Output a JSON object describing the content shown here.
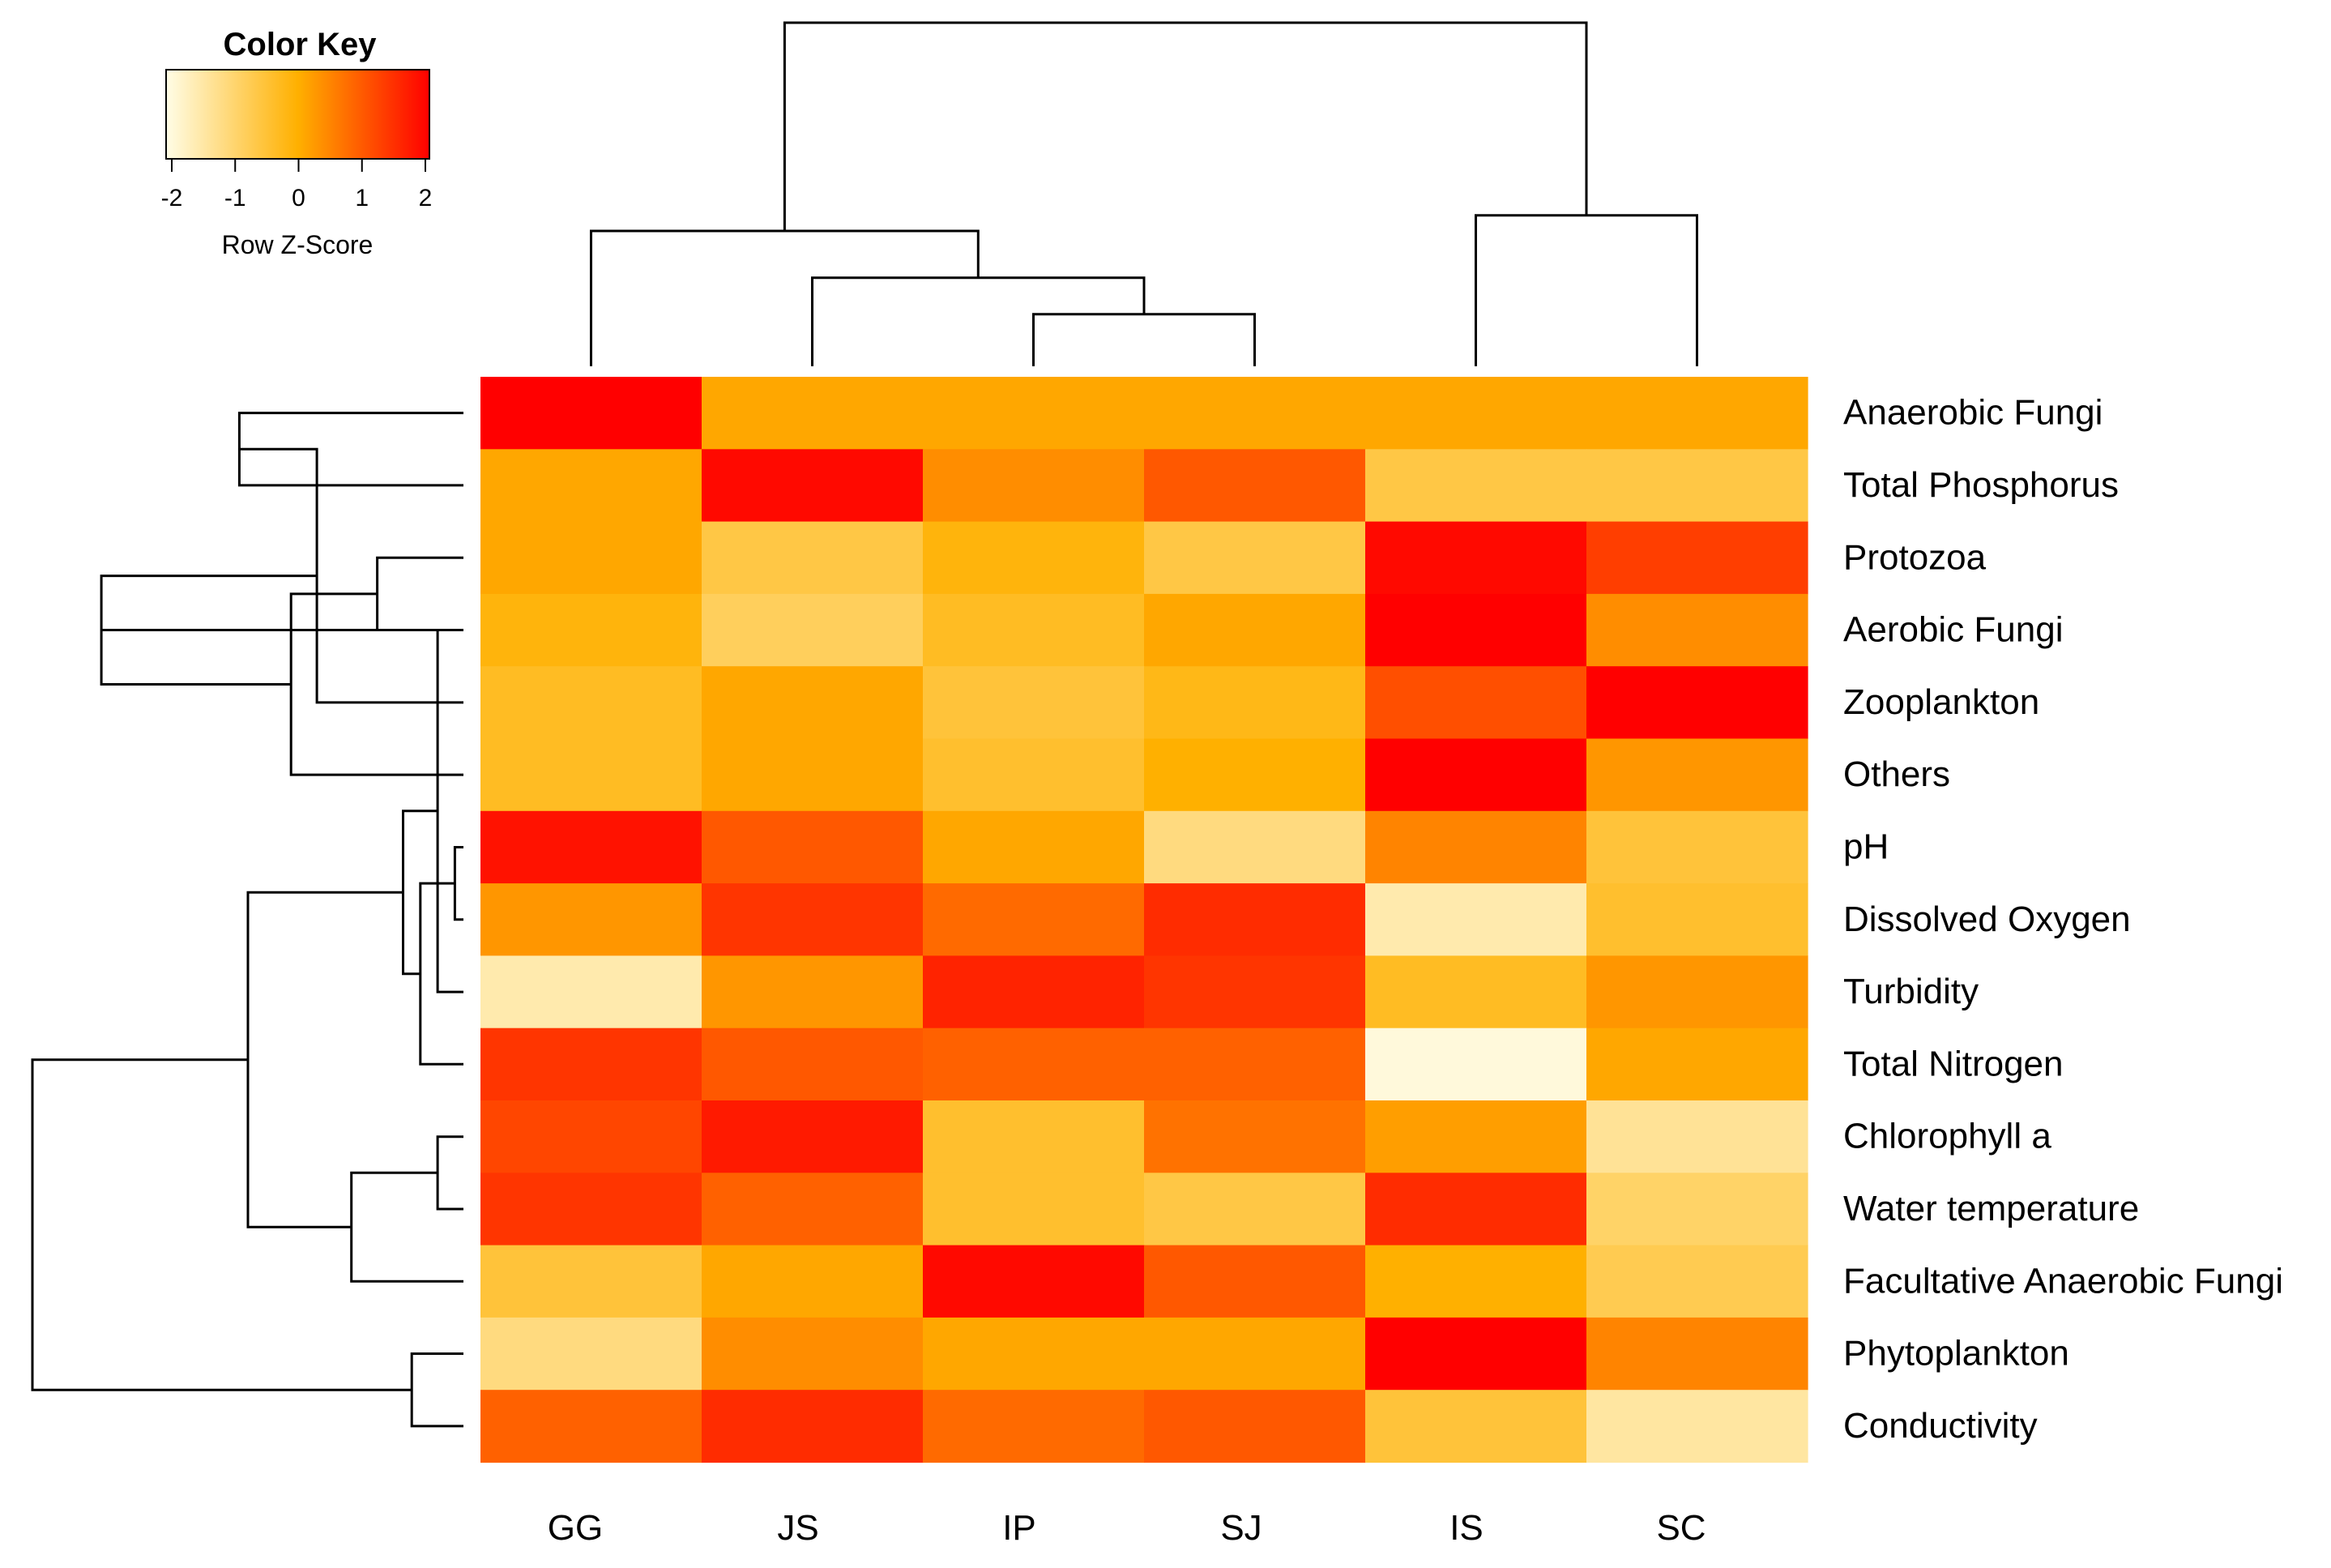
{
  "chart_data": {
    "type": "heatmap",
    "color_key": {
      "title": "Color Key",
      "label": "Row Z-Score",
      "ticks": [
        "-2",
        "-1",
        "0",
        "1",
        "2"
      ],
      "range": [
        -2,
        2
      ],
      "colors": [
        "#fffde6",
        "#ffb000",
        "#ff0000"
      ]
    },
    "columns": [
      "GG",
      "JS",
      "IP",
      "SJ",
      "IS",
      "SC"
    ],
    "rows": [
      "Anaerobic Fungi",
      "Total Phosphorus",
      "Protozoa",
      "Aerobic Fungi",
      "Zooplankton",
      "Others",
      "pH",
      "Dissolved Oxygen",
      "Turbidity",
      "Total Nitrogen",
      "Chlorophyll a",
      "Water temperature",
      "Facultative Anaerobic Fungi",
      "Phytoplankton",
      "Conductivity"
    ],
    "values": [
      [
        2.0,
        0.1,
        0.1,
        0.1,
        0.1,
        0.1
      ],
      [
        0.1,
        1.9,
        0.4,
        1.0,
        -0.6,
        -0.6
      ],
      [
        0.1,
        -0.6,
        -0.1,
        -0.6,
        1.9,
        1.3
      ],
      [
        -0.1,
        -0.8,
        -0.3,
        0.1,
        2.0,
        0.4
      ],
      [
        -0.3,
        0.1,
        -0.5,
        -0.2,
        1.1,
        2.0
      ],
      [
        -0.3,
        0.1,
        -0.4,
        0.0,
        2.0,
        0.3
      ],
      [
        1.8,
        1.0,
        0.1,
        -1.1,
        0.5,
        -0.5
      ],
      [
        0.3,
        1.4,
        0.8,
        1.5,
        -1.5,
        -0.4
      ],
      [
        -1.5,
        0.3,
        1.6,
        1.4,
        -0.3,
        0.3
      ],
      [
        1.4,
        1.0,
        0.9,
        0.9,
        -1.9,
        0.1
      ],
      [
        1.2,
        1.7,
        -0.4,
        0.7,
        0.2,
        -1.3
      ],
      [
        1.4,
        0.9,
        -0.4,
        -0.6,
        1.5,
        -0.9
      ],
      [
        -0.5,
        0.1,
        1.9,
        1.0,
        0.0,
        -0.7
      ],
      [
        -1.1,
        0.4,
        0.1,
        0.1,
        2.0,
        0.5
      ],
      [
        0.9,
        1.5,
        0.8,
        1.0,
        -0.5,
        -1.4
      ]
    ],
    "column_dendrogram": {
      "order": [
        "GG",
        "JS",
        "IP",
        "SJ",
        "IS",
        "SC"
      ],
      "merges": [
        [
          2,
          3,
          1.0
        ],
        [
          1,
          6,
          1.7
        ],
        [
          0,
          7,
          2.6
        ],
        [
          4,
          5,
          2.9
        ],
        [
          8,
          9,
          6.6
        ]
      ]
    },
    "row_dendrogram": {
      "merges": [
        [
          0,
          1,
          2.6
        ],
        [
          2,
          3,
          1.0
        ],
        [
          15,
          4,
          1.7
        ],
        [
          16,
          5,
          2.0
        ],
        [
          17,
          18,
          4.2
        ],
        [
          6,
          7,
          0.1
        ],
        [
          19,
          8,
          0.3
        ],
        [
          20,
          9,
          0.5
        ],
        [
          10,
          11,
          0.3
        ],
        [
          21,
          22,
          0.7
        ],
        [
          23,
          12,
          1.3
        ],
        [
          13,
          14,
          0.6
        ],
        [
          24,
          25,
          2.5
        ],
        [
          26,
          27,
          5.0
        ]
      ]
    }
  }
}
